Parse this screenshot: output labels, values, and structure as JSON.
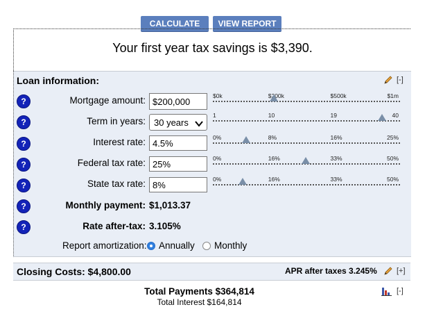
{
  "toolbar": {
    "calculate_label": "CALCULATE",
    "view_report_label": "VIEW REPORT"
  },
  "summary": {
    "headline": "Your first year tax savings is $3,390."
  },
  "loan": {
    "title": "Loan information:",
    "collapse_label": "[-]",
    "fields": {
      "mortgage": {
        "label": "Mortgage amount:",
        "value": "$200,000"
      },
      "term": {
        "label": "Term in years:",
        "value": "30 years"
      },
      "interest": {
        "label": "Interest rate:",
        "value": "4.5%"
      },
      "federal": {
        "label": "Federal tax rate:",
        "value": "25%"
      },
      "state": {
        "label": "State tax rate:",
        "value": "8%"
      }
    },
    "sliders": {
      "mortgage": {
        "ticks": [
          "$0k",
          "$200k",
          "$500k",
          "$1m"
        ],
        "value_fraction": 0.33
      },
      "term": {
        "ticks": [
          "1",
          "10",
          "19",
          "40"
        ],
        "value_fraction": 0.91
      },
      "interest": {
        "ticks": [
          "0%",
          "8%",
          "16%",
          "25%"
        ],
        "value_fraction": 0.18
      },
      "federal": {
        "ticks": [
          "0%",
          "16%",
          "33%",
          "50%"
        ],
        "value_fraction": 0.5
      },
      "state": {
        "ticks": [
          "0%",
          "16%",
          "33%",
          "50%"
        ],
        "value_fraction": 0.16
      }
    },
    "monthly_payment": {
      "label": "Monthly payment:",
      "value": "$1,013.37"
    },
    "rate_after_tax": {
      "label": "Rate after-tax:",
      "value": "3.105%"
    },
    "amortization": {
      "label": "Report amortization:",
      "annually": "Annually",
      "monthly": "Monthly"
    }
  },
  "closing": {
    "label": "Closing Costs: $4,800.00",
    "apr": "APR after taxes 3.245%",
    "expand_label": "[+]"
  },
  "totals": {
    "total_payments": "Total Payments $364,814",
    "total_interest": "Total Interest $164,814",
    "collapse_label": "[-]"
  },
  "icons": {
    "help": "?",
    "help_color": "#1323b8",
    "accent": "#5b7fbd"
  }
}
